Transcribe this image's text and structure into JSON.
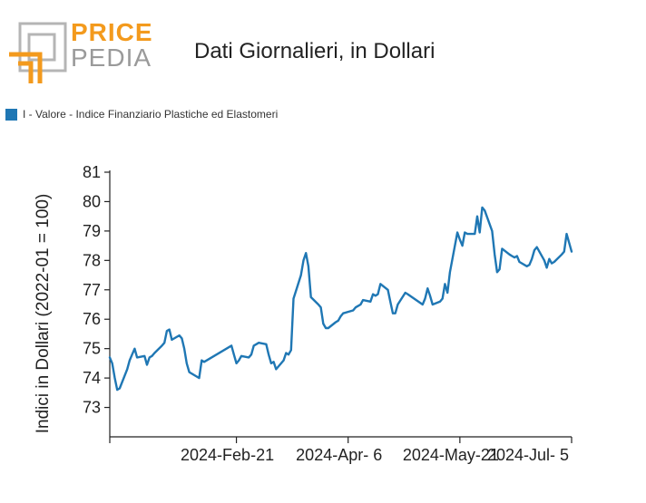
{
  "logo": {
    "word1": "PRICE",
    "word2": "PEDIA"
  },
  "colors": {
    "series": "#1f77b4",
    "logo_orange": "#f39a1d",
    "logo_gray": "#9a9a9a"
  },
  "chart_data": {
    "type": "line",
    "title": "Dati Giornalieri, in Dollari",
    "ylabel": "Indici in Dollari (2022-01 = 100)",
    "xlabel": "",
    "ylim": [
      72,
      81
    ],
    "y_ticks": [
      73,
      74,
      75,
      76,
      77,
      78,
      79,
      80,
      81
    ],
    "xlim": [
      "2024-01-01",
      "2024-07-05"
    ],
    "x_tick_labels": [
      "2024-Feb-21",
      "2024-Apr- 6",
      "2024-May-21",
      "2024-Jul- 5"
    ],
    "x_tick_dates": [
      "2024-02-21",
      "2024-04-06",
      "2024-05-21",
      "2024-07-05"
    ],
    "legend_position": "top-left",
    "grid": false,
    "series": [
      {
        "name": "I - Valore - Indice Finanziario Plastiche ed Elastomeri",
        "color": "#1f77b4",
        "points": [
          [
            "2024-01-01",
            74.7
          ],
          [
            "2024-01-02",
            74.5
          ],
          [
            "2024-01-03",
            74.0
          ],
          [
            "2024-01-04",
            73.6
          ],
          [
            "2024-01-05",
            73.65
          ],
          [
            "2024-01-08",
            74.3
          ],
          [
            "2024-01-09",
            74.6
          ],
          [
            "2024-01-10",
            74.8
          ],
          [
            "2024-01-11",
            75.0
          ],
          [
            "2024-01-12",
            74.7
          ],
          [
            "2024-01-15",
            74.75
          ],
          [
            "2024-01-16",
            74.45
          ],
          [
            "2024-01-17",
            74.7
          ],
          [
            "2024-01-18",
            74.75
          ],
          [
            "2024-01-19",
            74.85
          ],
          [
            "2024-01-22",
            75.1
          ],
          [
            "2024-01-23",
            75.2
          ],
          [
            "2024-01-24",
            75.6
          ],
          [
            "2024-01-25",
            75.65
          ],
          [
            "2024-01-26",
            75.3
          ],
          [
            "2024-01-29",
            75.45
          ],
          [
            "2024-01-30",
            75.35
          ],
          [
            "2024-01-31",
            75.0
          ],
          [
            "2024-02-01",
            74.5
          ],
          [
            "2024-02-02",
            74.2
          ],
          [
            "2024-02-05",
            74.05
          ],
          [
            "2024-02-06",
            74.0
          ],
          [
            "2024-02-07",
            74.6
          ],
          [
            "2024-02-08",
            74.55
          ],
          [
            "2024-02-19",
            75.1
          ],
          [
            "2024-02-20",
            74.8
          ],
          [
            "2024-02-21",
            74.5
          ],
          [
            "2024-02-22",
            74.6
          ],
          [
            "2024-02-23",
            74.75
          ],
          [
            "2024-02-26",
            74.7
          ],
          [
            "2024-02-27",
            74.8
          ],
          [
            "2024-02-28",
            75.1
          ],
          [
            "2024-02-29",
            75.15
          ],
          [
            "2024-03-01",
            75.2
          ],
          [
            "2024-03-04",
            75.15
          ],
          [
            "2024-03-05",
            74.8
          ],
          [
            "2024-03-06",
            74.5
          ],
          [
            "2024-03-07",
            74.55
          ],
          [
            "2024-03-08",
            74.3
          ],
          [
            "2024-03-11",
            74.6
          ],
          [
            "2024-03-12",
            74.85
          ],
          [
            "2024-03-13",
            74.8
          ],
          [
            "2024-03-14",
            74.95
          ],
          [
            "2024-03-15",
            76.7
          ],
          [
            "2024-03-18",
            77.5
          ],
          [
            "2024-03-19",
            78.0
          ],
          [
            "2024-03-20",
            78.25
          ],
          [
            "2024-03-21",
            77.8
          ],
          [
            "2024-03-22",
            76.75
          ],
          [
            "2024-03-25",
            76.5
          ],
          [
            "2024-03-26",
            76.4
          ],
          [
            "2024-03-27",
            75.85
          ],
          [
            "2024-03-28",
            75.7
          ],
          [
            "2024-03-29",
            75.7
          ],
          [
            "2024-04-01",
            75.9
          ],
          [
            "2024-04-02",
            75.95
          ],
          [
            "2024-04-03",
            76.1
          ],
          [
            "2024-04-04",
            76.2
          ],
          [
            "2024-04-08",
            76.3
          ],
          [
            "2024-04-09",
            76.4
          ],
          [
            "2024-04-10",
            76.45
          ],
          [
            "2024-04-11",
            76.5
          ],
          [
            "2024-04-12",
            76.65
          ],
          [
            "2024-04-15",
            76.6
          ],
          [
            "2024-04-16",
            76.85
          ],
          [
            "2024-04-17",
            76.8
          ],
          [
            "2024-04-18",
            76.85
          ],
          [
            "2024-04-19",
            77.2
          ],
          [
            "2024-04-22",
            77.0
          ],
          [
            "2024-04-23",
            76.6
          ],
          [
            "2024-04-24",
            76.2
          ],
          [
            "2024-04-25",
            76.2
          ],
          [
            "2024-04-26",
            76.5
          ],
          [
            "2024-04-29",
            76.9
          ],
          [
            "2024-04-30",
            76.85
          ],
          [
            "2024-05-06",
            76.5
          ],
          [
            "2024-05-07",
            76.7
          ],
          [
            "2024-05-08",
            77.05
          ],
          [
            "2024-05-09",
            76.8
          ],
          [
            "2024-05-10",
            76.5
          ],
          [
            "2024-05-13",
            76.6
          ],
          [
            "2024-05-14",
            76.7
          ],
          [
            "2024-05-15",
            77.2
          ],
          [
            "2024-05-16",
            76.9
          ],
          [
            "2024-05-17",
            77.6
          ],
          [
            "2024-05-20",
            78.95
          ],
          [
            "2024-05-21",
            78.7
          ],
          [
            "2024-05-22",
            78.5
          ],
          [
            "2024-05-23",
            78.95
          ],
          [
            "2024-05-24",
            78.9
          ],
          [
            "2024-05-27",
            78.9
          ],
          [
            "2024-05-28",
            79.5
          ],
          [
            "2024-05-29",
            78.95
          ],
          [
            "2024-05-30",
            79.8
          ],
          [
            "2024-05-31",
            79.7
          ],
          [
            "2024-06-03",
            79.0
          ],
          [
            "2024-06-04",
            78.2
          ],
          [
            "2024-06-05",
            77.6
          ],
          [
            "2024-06-06",
            77.7
          ],
          [
            "2024-06-07",
            78.4
          ],
          [
            "2024-06-10",
            78.2
          ],
          [
            "2024-06-11",
            78.15
          ],
          [
            "2024-06-12",
            78.1
          ],
          [
            "2024-06-13",
            78.15
          ],
          [
            "2024-06-14",
            77.95
          ],
          [
            "2024-06-17",
            77.8
          ],
          [
            "2024-06-18",
            77.85
          ],
          [
            "2024-06-19",
            78.05
          ],
          [
            "2024-06-20",
            78.35
          ],
          [
            "2024-06-21",
            78.45
          ],
          [
            "2024-06-24",
            78.0
          ],
          [
            "2024-06-25",
            77.75
          ],
          [
            "2024-06-26",
            78.05
          ],
          [
            "2024-06-27",
            77.9
          ],
          [
            "2024-06-28",
            77.95
          ],
          [
            "2024-07-01",
            78.2
          ],
          [
            "2024-07-02",
            78.3
          ],
          [
            "2024-07-03",
            78.9
          ],
          [
            "2024-07-04",
            78.6
          ],
          [
            "2024-07-05",
            78.3
          ]
        ]
      }
    ]
  }
}
